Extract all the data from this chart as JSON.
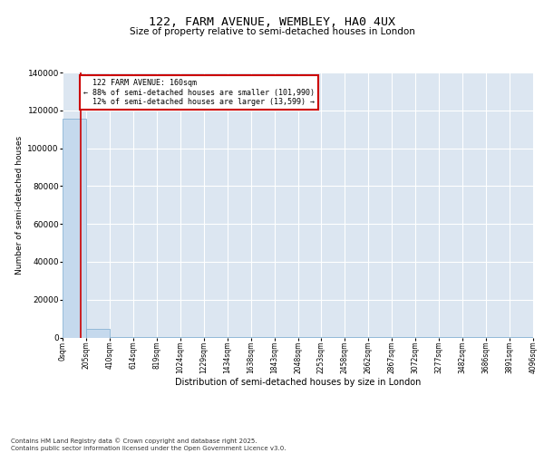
{
  "title": "122, FARM AVENUE, WEMBLEY, HA0 4UX",
  "subtitle": "Size of property relative to semi-detached houses in London",
  "xlabel": "Distribution of semi-detached houses by size in London",
  "ylabel": "Number of semi-detached houses",
  "property_size": 160,
  "property_label": "122 FARM AVENUE: 160sqm",
  "pct_smaller": 88,
  "pct_larger": 12,
  "count_smaller": 101990,
  "count_larger": 13599,
  "bin_edges": [
    0,
    205,
    410,
    614,
    819,
    1024,
    1229,
    1434,
    1638,
    1843,
    2048,
    2253,
    2458,
    2662,
    2867,
    3072,
    3277,
    3482,
    3686,
    3891,
    4096
  ],
  "bar_heights": [
    115589,
    4500,
    400,
    180,
    90,
    50,
    30,
    20,
    12,
    9,
    7,
    6,
    5,
    4,
    4,
    3,
    3,
    2,
    2,
    2
  ],
  "bar_color": "#c5d9ed",
  "bar_edge_color": "#7aabcf",
  "bg_color": "#dce6f1",
  "grid_color": "#ffffff",
  "vline_color": "#cc0000",
  "annotation_box_color": "#cc0000",
  "footer_text": "Contains HM Land Registry data © Crown copyright and database right 2025.\nContains public sector information licensed under the Open Government Licence v3.0.",
  "ylim": [
    0,
    140000
  ],
  "yticks": [
    0,
    20000,
    40000,
    60000,
    80000,
    100000,
    120000,
    140000
  ]
}
